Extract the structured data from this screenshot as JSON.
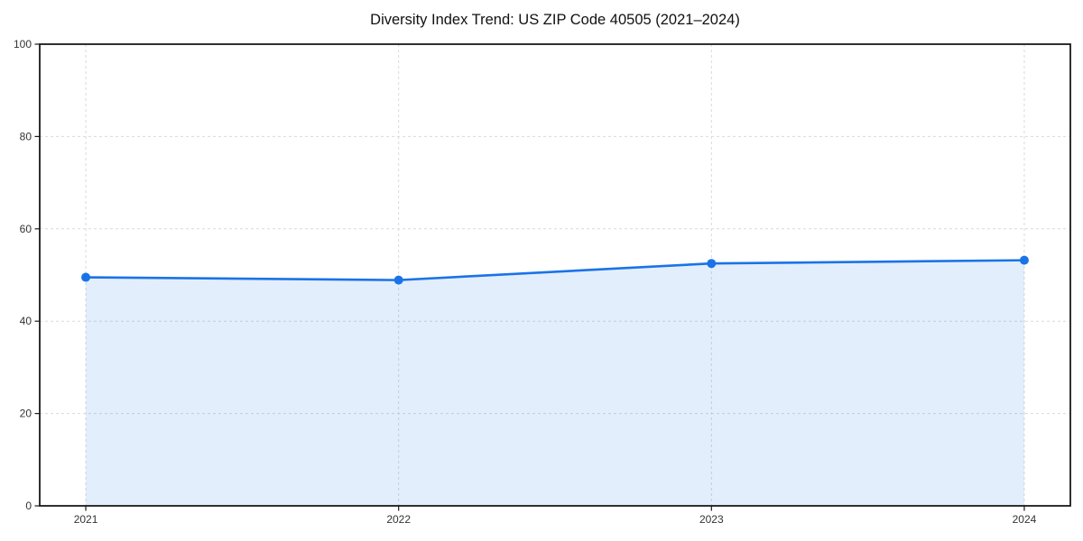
{
  "page": {
    "background": "#ffffff"
  },
  "chart_data": {
    "type": "area",
    "title": "Diversity Index Trend: US ZIP Code 40505 (2021–2024)",
    "x": [
      2021,
      2022,
      2023,
      2024
    ],
    "x_labels": [
      "2021",
      "2022",
      "2023",
      "2024"
    ],
    "values": [
      49.5,
      48.9,
      52.5,
      53.2
    ],
    "series_label": "Diversity Index",
    "xlabel": "",
    "ylabel": "",
    "ylim": [
      0,
      100
    ],
    "yticks": [
      0,
      20,
      40,
      60,
      80,
      100
    ],
    "ytick_labels": [
      "0",
      "20",
      "40",
      "60",
      "80",
      "100"
    ],
    "grid": "dashed-both-axes",
    "legend": "none",
    "marker": "circle",
    "colors": {
      "line": "#1a73e8",
      "marker": "#1a73e8",
      "fill": "rgba(26,115,232,0.12)",
      "frame": "#1a1a1a",
      "gridline": "#d9d9d9",
      "tick_text": "#333333",
      "title_text": "#111111"
    }
  }
}
